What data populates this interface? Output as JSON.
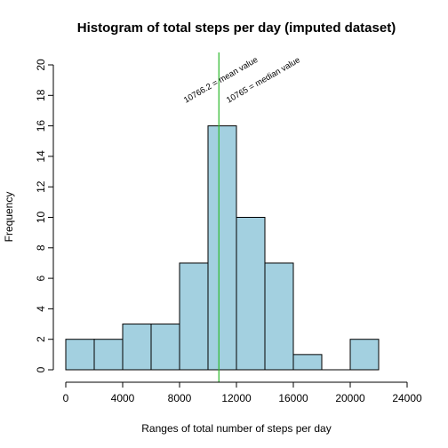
{
  "chart_data": {
    "type": "bar",
    "title": "Histogram of total steps per day (imputed dataset)",
    "xlabel": "Ranges of total number of steps per day",
    "ylabel": "Frequency",
    "xlim": [
      0,
      24000
    ],
    "ylim": [
      0,
      20
    ],
    "bin_width": 2000,
    "bins": [
      {
        "start": 0,
        "end": 2000,
        "value": 2
      },
      {
        "start": 2000,
        "end": 4000,
        "value": 2
      },
      {
        "start": 4000,
        "end": 6000,
        "value": 3
      },
      {
        "start": 6000,
        "end": 8000,
        "value": 3
      },
      {
        "start": 8000,
        "end": 10000,
        "value": 7
      },
      {
        "start": 10000,
        "end": 12000,
        "value": 16
      },
      {
        "start": 12000,
        "end": 14000,
        "value": 10
      },
      {
        "start": 14000,
        "end": 16000,
        "value": 7
      },
      {
        "start": 16000,
        "end": 18000,
        "value": 1
      },
      {
        "start": 18000,
        "end": 20000,
        "value": 0
      },
      {
        "start": 20000,
        "end": 22000,
        "value": 2
      }
    ],
    "x_ticks": [
      0,
      4000,
      8000,
      12000,
      16000,
      20000,
      24000
    ],
    "y_ticks": [
      0,
      2,
      4,
      6,
      8,
      10,
      12,
      14,
      16,
      18,
      20
    ],
    "bar_color": "#a3d0e0",
    "bar_stroke": "#000000",
    "grid": false,
    "reference_lines": [
      {
        "x": 10766.2,
        "color": "#33bb33",
        "label": "10766.2 = mean value"
      },
      {
        "x": 10765,
        "color": "#33bb33",
        "label": "10765 = median value"
      }
    ]
  }
}
